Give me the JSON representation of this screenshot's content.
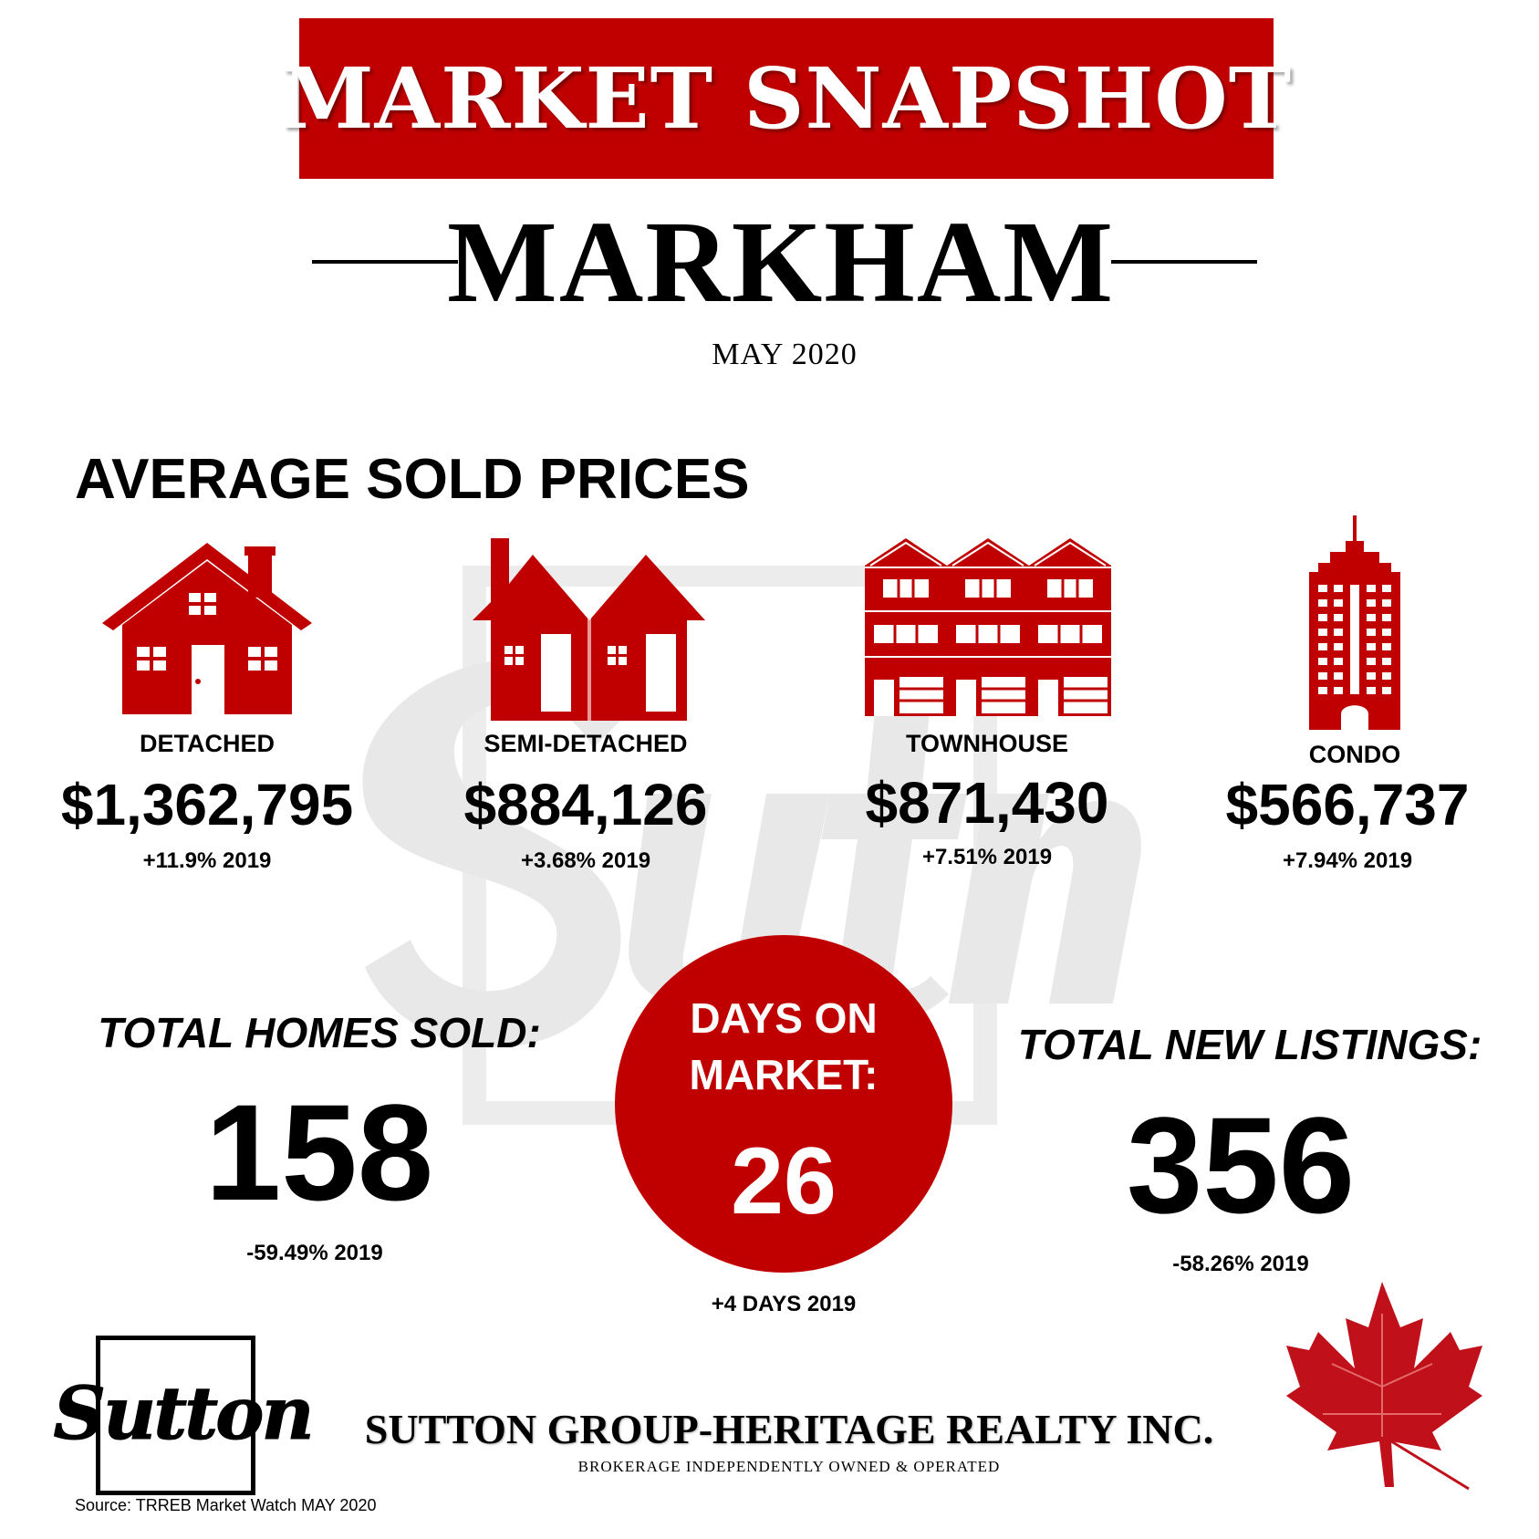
{
  "header": {
    "banner": "MARKET SNAPSHOT",
    "city": "MARKHAM",
    "period": "MAY 2020"
  },
  "prices": {
    "title": "AVERAGE SOLD PRICES",
    "items": [
      {
        "type": "DETACHED",
        "price": "$1,362,795",
        "change": "+11.9% 2019",
        "icon": "detached-house-icon"
      },
      {
        "type": "SEMI-DETACHED",
        "price": "$884,126",
        "change": "+3.68%  2019",
        "icon": "semi-detached-house-icon"
      },
      {
        "type": "TOWNHOUSE",
        "price": "$871,430",
        "change": "+7.51%  2019",
        "icon": "townhouse-icon"
      },
      {
        "type": "CONDO",
        "price": "$566,737",
        "change": "+7.94% 2019",
        "icon": "condo-tower-icon"
      }
    ]
  },
  "stats": {
    "homes_sold": {
      "title": "TOTAL HOMES SOLD:",
      "value": "158",
      "change": "-59.49% 2019"
    },
    "days_on_market": {
      "title_line1": "DAYS ON",
      "title_line2": "MARKET:",
      "value": "26",
      "change": "+4 DAYS 2019"
    },
    "new_listings": {
      "title": "TOTAL NEW LISTINGS:",
      "value": "356",
      "change": "-58.26% 2019"
    }
  },
  "footer": {
    "logo_text": "Sutton",
    "company": "SUTTON GROUP-HERITAGE REALTY INC.",
    "tagline": "BROKERAGE INDEPENDENTLY OWNED & OPERATED",
    "source": "Source: TRREB Market Watch MAY 2020"
  },
  "colors": {
    "accent": "#c00000",
    "text": "#000000",
    "watermark": "#e6e6e6"
  },
  "icons": [
    "detached-house-icon",
    "semi-detached-house-icon",
    "townhouse-icon",
    "condo-tower-icon",
    "maple-leaf-icon",
    "sutton-watermark-icon"
  ]
}
